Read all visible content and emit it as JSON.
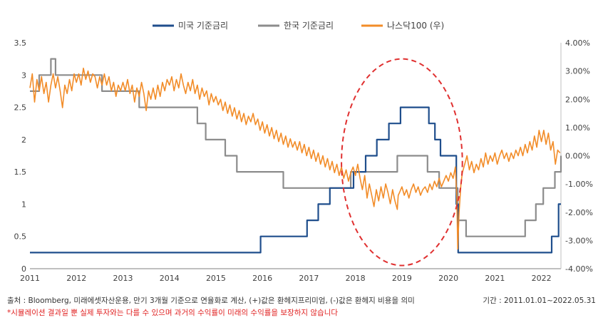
{
  "chart_data": {
    "type": "line",
    "title": "",
    "legend_position": "top-center",
    "grid": false,
    "x_range": [
      2011.0,
      2022.42
    ],
    "x_ticks": [
      "2011",
      "2012",
      "2013",
      "2014",
      "2015",
      "2016",
      "2017",
      "2018",
      "2019",
      "2020",
      "2021",
      "2022"
    ],
    "y_left_range": [
      0,
      3.5
    ],
    "y_left_ticks": [
      "0",
      "0.5",
      "1",
      "1.5",
      "2",
      "2.5",
      "3",
      "3.5"
    ],
    "y_right_range": [
      -4.0,
      4.0
    ],
    "y_right_ticks": [
      "-4.00%",
      "-3.00%",
      "-2.00%",
      "-1.00%",
      "0.00%",
      "1.00%",
      "2.00%",
      "3.00%",
      "4.00%"
    ],
    "series": [
      {
        "name": "미국 기준금리",
        "axis": "left",
        "color": "#1f4e8c",
        "step": true,
        "points": [
          [
            2011.0,
            0.25
          ],
          [
            2015.96,
            0.5
          ],
          [
            2016.96,
            0.75
          ],
          [
            2017.2,
            1.0
          ],
          [
            2017.45,
            1.25
          ],
          [
            2017.96,
            1.5
          ],
          [
            2018.22,
            1.75
          ],
          [
            2018.46,
            2.0
          ],
          [
            2018.72,
            2.25
          ],
          [
            2018.97,
            2.5
          ],
          [
            2019.58,
            2.25
          ],
          [
            2019.71,
            2.0
          ],
          [
            2019.83,
            1.75
          ],
          [
            2020.17,
            1.0
          ],
          [
            2020.21,
            0.25
          ],
          [
            2022.22,
            0.5
          ],
          [
            2022.37,
            1.0
          ],
          [
            2022.42,
            1.0
          ]
        ]
      },
      {
        "name": "한국 기준금리",
        "axis": "left",
        "color": "#8c8c8c",
        "step": true,
        "points": [
          [
            2011.0,
            2.75
          ],
          [
            2011.2,
            3.0
          ],
          [
            2011.45,
            3.25
          ],
          [
            2011.55,
            3.0
          ],
          [
            2012.55,
            2.75
          ],
          [
            2012.78,
            2.75
          ],
          [
            2013.35,
            2.5
          ],
          [
            2014.6,
            2.25
          ],
          [
            2014.78,
            2.0
          ],
          [
            2015.2,
            1.75
          ],
          [
            2015.45,
            1.5
          ],
          [
            2016.45,
            1.25
          ],
          [
            2017.9,
            1.5
          ],
          [
            2018.9,
            1.75
          ],
          [
            2019.55,
            1.5
          ],
          [
            2019.8,
            1.25
          ],
          [
            2020.2,
            0.75
          ],
          [
            2020.38,
            0.5
          ],
          [
            2021.65,
            0.75
          ],
          [
            2021.88,
            1.0
          ],
          [
            2022.04,
            1.25
          ],
          [
            2022.29,
            1.5
          ],
          [
            2022.42,
            1.75
          ]
        ]
      },
      {
        "name": "나스닥100 (우)",
        "axis": "right",
        "color": "#f28c28",
        "points": [
          [
            2011.0,
            2.4
          ],
          [
            2011.05,
            2.9
          ],
          [
            2011.1,
            1.9
          ],
          [
            2011.15,
            2.7
          ],
          [
            2011.2,
            2.3
          ],
          [
            2011.25,
            2.8
          ],
          [
            2011.3,
            2.2
          ],
          [
            2011.35,
            2.6
          ],
          [
            2011.4,
            1.9
          ],
          [
            2011.45,
            2.5
          ],
          [
            2011.5,
            2.9
          ],
          [
            2011.55,
            2.4
          ],
          [
            2011.6,
            2.8
          ],
          [
            2011.65,
            2.3
          ],
          [
            2011.7,
            1.7
          ],
          [
            2011.75,
            2.5
          ],
          [
            2011.8,
            2.2
          ],
          [
            2011.85,
            2.7
          ],
          [
            2011.9,
            2.3
          ],
          [
            2011.95,
            2.9
          ],
          [
            2012.0,
            2.6
          ],
          [
            2012.05,
            2.9
          ],
          [
            2012.1,
            2.5
          ],
          [
            2012.15,
            3.1
          ],
          [
            2012.2,
            2.7
          ],
          [
            2012.25,
            3.0
          ],
          [
            2012.3,
            2.6
          ],
          [
            2012.35,
            2.9
          ],
          [
            2012.4,
            2.8
          ],
          [
            2012.45,
            2.4
          ],
          [
            2012.5,
            2.8
          ],
          [
            2012.55,
            2.5
          ],
          [
            2012.6,
            2.9
          ],
          [
            2012.65,
            2.5
          ],
          [
            2012.7,
            2.8
          ],
          [
            2012.75,
            2.3
          ],
          [
            2012.8,
            2.6
          ],
          [
            2012.85,
            2.1
          ],
          [
            2012.9,
            2.5
          ],
          [
            2012.95,
            2.3
          ],
          [
            2013.0,
            2.6
          ],
          [
            2013.05,
            2.3
          ],
          [
            2013.1,
            2.7
          ],
          [
            2013.15,
            2.2
          ],
          [
            2013.2,
            2.5
          ],
          [
            2013.25,
            1.9
          ],
          [
            2013.3,
            2.4
          ],
          [
            2013.35,
            2.1
          ],
          [
            2013.4,
            2.6
          ],
          [
            2013.45,
            2.2
          ],
          [
            2013.5,
            1.6
          ],
          [
            2013.55,
            2.3
          ],
          [
            2013.6,
            2.0
          ],
          [
            2013.65,
            2.4
          ],
          [
            2013.7,
            2.0
          ],
          [
            2013.75,
            2.5
          ],
          [
            2013.8,
            2.1
          ],
          [
            2013.85,
            2.6
          ],
          [
            2013.9,
            2.3
          ],
          [
            2013.95,
            2.7
          ],
          [
            2014.0,
            2.5
          ],
          [
            2014.05,
            2.8
          ],
          [
            2014.1,
            2.3
          ],
          [
            2014.15,
            2.7
          ],
          [
            2014.2,
            2.4
          ],
          [
            2014.25,
            2.9
          ],
          [
            2014.3,
            2.5
          ],
          [
            2014.35,
            2.2
          ],
          [
            2014.4,
            2.6
          ],
          [
            2014.45,
            2.3
          ],
          [
            2014.5,
            2.7
          ],
          [
            2014.55,
            2.2
          ],
          [
            2014.6,
            2.5
          ],
          [
            2014.65,
            2.0
          ],
          [
            2014.7,
            2.4
          ],
          [
            2014.75,
            2.1
          ],
          [
            2014.8,
            2.3
          ],
          [
            2014.85,
            1.8
          ],
          [
            2014.9,
            2.2
          ],
          [
            2014.95,
            1.9
          ],
          [
            2015.0,
            2.1
          ],
          [
            2015.05,
            1.8
          ],
          [
            2015.1,
            2.0
          ],
          [
            2015.15,
            1.6
          ],
          [
            2015.2,
            1.9
          ],
          [
            2015.25,
            1.5
          ],
          [
            2015.3,
            1.8
          ],
          [
            2015.35,
            1.4
          ],
          [
            2015.4,
            1.7
          ],
          [
            2015.45,
            1.3
          ],
          [
            2015.5,
            1.6
          ],
          [
            2015.55,
            1.2
          ],
          [
            2015.6,
            1.5
          ],
          [
            2015.65,
            1.1
          ],
          [
            2015.7,
            1.4
          ],
          [
            2015.75,
            1.2
          ],
          [
            2015.8,
            1.5
          ],
          [
            2015.85,
            1.1
          ],
          [
            2015.9,
            1.3
          ],
          [
            2015.95,
            0.9
          ],
          [
            2016.0,
            1.2
          ],
          [
            2016.05,
            0.8
          ],
          [
            2016.1,
            1.1
          ],
          [
            2016.15,
            0.7
          ],
          [
            2016.2,
            1.0
          ],
          [
            2016.25,
            0.6
          ],
          [
            2016.3,
            0.9
          ],
          [
            2016.35,
            0.5
          ],
          [
            2016.4,
            0.8
          ],
          [
            2016.45,
            0.4
          ],
          [
            2016.5,
            0.7
          ],
          [
            2016.55,
            0.3
          ],
          [
            2016.6,
            0.6
          ],
          [
            2016.65,
            0.3
          ],
          [
            2016.7,
            0.5
          ],
          [
            2016.75,
            0.2
          ],
          [
            2016.8,
            0.5
          ],
          [
            2016.85,
            0.1
          ],
          [
            2016.9,
            0.4
          ],
          [
            2016.95,
            0.0
          ],
          [
            2017.0,
            0.3
          ],
          [
            2017.05,
            -0.1
          ],
          [
            2017.1,
            0.2
          ],
          [
            2017.15,
            -0.2
          ],
          [
            2017.2,
            0.1
          ],
          [
            2017.25,
            -0.3
          ],
          [
            2017.3,
            0.0
          ],
          [
            2017.35,
            -0.4
          ],
          [
            2017.4,
            -0.1
          ],
          [
            2017.45,
            -0.5
          ],
          [
            2017.5,
            -0.2
          ],
          [
            2017.55,
            -0.6
          ],
          [
            2017.6,
            -0.3
          ],
          [
            2017.65,
            -0.7
          ],
          [
            2017.7,
            -0.4
          ],
          [
            2017.75,
            -0.8
          ],
          [
            2017.8,
            -0.5
          ],
          [
            2017.85,
            -0.9
          ],
          [
            2017.9,
            -0.6
          ],
          [
            2017.95,
            -0.4
          ],
          [
            2018.0,
            -0.7
          ],
          [
            2018.05,
            -0.3
          ],
          [
            2018.1,
            -0.8
          ],
          [
            2018.15,
            -1.2
          ],
          [
            2018.2,
            -0.7
          ],
          [
            2018.25,
            -1.5
          ],
          [
            2018.3,
            -1.0
          ],
          [
            2018.35,
            -1.4
          ],
          [
            2018.4,
            -1.8
          ],
          [
            2018.45,
            -1.2
          ],
          [
            2018.5,
            -1.6
          ],
          [
            2018.55,
            -1.1
          ],
          [
            2018.6,
            -1.5
          ],
          [
            2018.65,
            -1.0
          ],
          [
            2018.7,
            -1.3
          ],
          [
            2018.75,
            -1.7
          ],
          [
            2018.8,
            -1.2
          ],
          [
            2018.85,
            -1.6
          ],
          [
            2018.9,
            -1.9
          ],
          [
            2018.92,
            -1.4
          ],
          [
            2018.95,
            -1.3
          ],
          [
            2019.0,
            -1.1
          ],
          [
            2019.05,
            -1.4
          ],
          [
            2019.1,
            -1.2
          ],
          [
            2019.15,
            -1.5
          ],
          [
            2019.2,
            -1.2
          ],
          [
            2019.25,
            -1.0
          ],
          [
            2019.3,
            -1.3
          ],
          [
            2019.35,
            -1.1
          ],
          [
            2019.4,
            -1.4
          ],
          [
            2019.45,
            -1.2
          ],
          [
            2019.5,
            -1.1
          ],
          [
            2019.55,
            -1.3
          ],
          [
            2019.6,
            -1.0
          ],
          [
            2019.65,
            -1.2
          ],
          [
            2019.7,
            -0.9
          ],
          [
            2019.75,
            -1.1
          ],
          [
            2019.8,
            -0.8
          ],
          [
            2019.85,
            -1.1
          ],
          [
            2019.9,
            -0.9
          ],
          [
            2019.95,
            -0.7
          ],
          [
            2020.0,
            -0.9
          ],
          [
            2020.05,
            -0.6
          ],
          [
            2020.1,
            -0.8
          ],
          [
            2020.15,
            -0.4
          ],
          [
            2020.18,
            -1.5
          ],
          [
            2020.2,
            -3.3
          ],
          [
            2020.23,
            -2.0
          ],
          [
            2020.27,
            -1.0
          ],
          [
            2020.3,
            -0.6
          ],
          [
            2020.35,
            -0.3
          ],
          [
            2020.4,
            0.0
          ],
          [
            2020.45,
            -0.5
          ],
          [
            2020.5,
            -0.2
          ],
          [
            2020.55,
            -0.6
          ],
          [
            2020.6,
            -0.3
          ],
          [
            2020.65,
            -0.5
          ],
          [
            2020.7,
            -0.1
          ],
          [
            2020.75,
            -0.4
          ],
          [
            2020.8,
            0.1
          ],
          [
            2020.85,
            -0.3
          ],
          [
            2020.9,
            0.0
          ],
          [
            2020.95,
            -0.2
          ],
          [
            2021.0,
            0.1
          ],
          [
            2021.05,
            -0.3
          ],
          [
            2021.1,
            0.0
          ],
          [
            2021.15,
            0.2
          ],
          [
            2021.2,
            -0.1
          ],
          [
            2021.25,
            0.1
          ],
          [
            2021.3,
            -0.2
          ],
          [
            2021.35,
            0.1
          ],
          [
            2021.4,
            -0.1
          ],
          [
            2021.45,
            0.2
          ],
          [
            2021.5,
            0.0
          ],
          [
            2021.55,
            0.3
          ],
          [
            2021.6,
            0.0
          ],
          [
            2021.65,
            0.4
          ],
          [
            2021.7,
            0.1
          ],
          [
            2021.75,
            0.5
          ],
          [
            2021.8,
            0.2
          ],
          [
            2021.85,
            0.7
          ],
          [
            2021.9,
            0.3
          ],
          [
            2021.95,
            0.9
          ],
          [
            2022.0,
            0.5
          ],
          [
            2022.05,
            0.9
          ],
          [
            2022.1,
            0.4
          ],
          [
            2022.15,
            0.8
          ],
          [
            2022.2,
            0.2
          ],
          [
            2022.25,
            0.5
          ],
          [
            2022.3,
            -0.3
          ],
          [
            2022.35,
            0.2
          ],
          [
            2022.4,
            0.1
          ]
        ]
      }
    ],
    "annotations": [
      {
        "type": "ellipse",
        "style": "dashed",
        "color": "#e03030",
        "center": [
          2019.0,
          1.65
        ],
        "radius_x_years": 1.3,
        "radius_y": 1.6
      }
    ]
  },
  "footer": {
    "source": "출처 : Bloomberg, 미래에셋자산운용, 만기 3개월 기준으로 연율화로 계산, (+)값은 환헤지프리미엄, (-)값은 환헤지 비용을 의미",
    "period": "기간 : 2011.01.01~2022.05.31",
    "disclaimer": "*시뮬레이션 결과일 뿐 실제 투자와는 다를 수 있으며 과거의 수익률이  미래의 수익률을 보장하지 않습니다"
  }
}
